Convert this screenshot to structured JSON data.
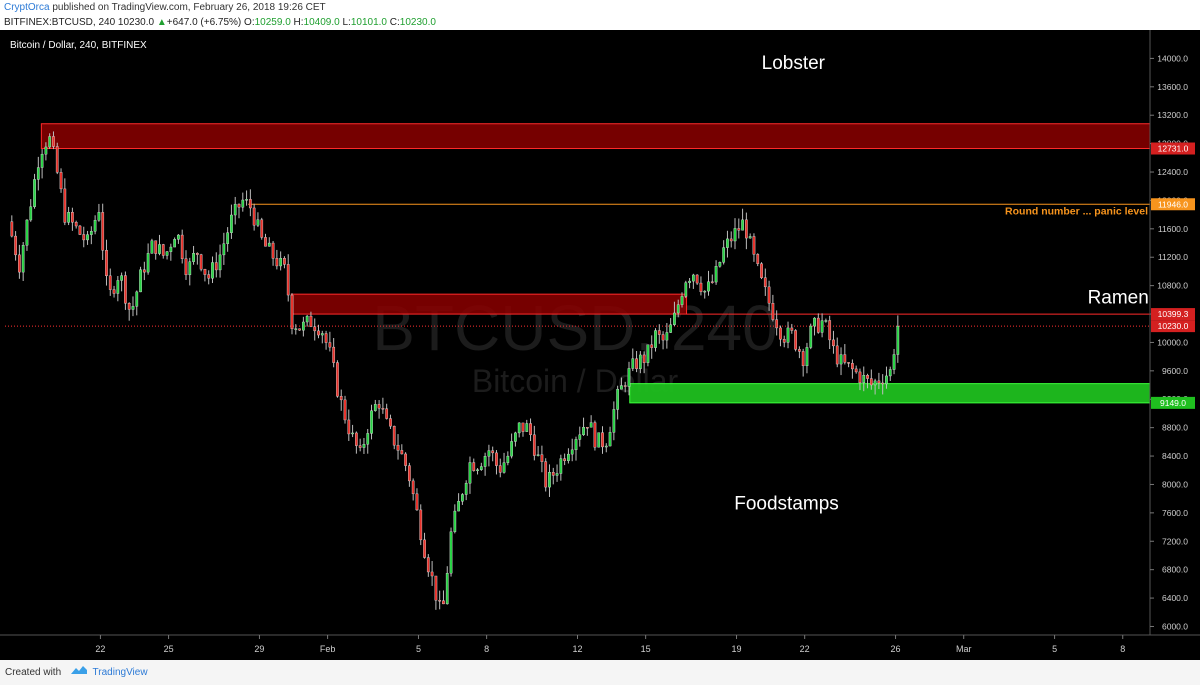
{
  "header": {
    "author": "CryptOrca",
    "published_text": "published on TradingView.com, February 26, 2018 19:26 CET"
  },
  "legend": {
    "symbol": "BITFINEX:BTCUSD, 240",
    "last": "10230.0",
    "change_arrow": "▲",
    "change": "+647.0 (+6.75%)",
    "o_label": "O:",
    "o_value": "10259.0",
    "h_label": "H:",
    "h_value": "10409.0",
    "l_label": "L:",
    "l_value": "10101.0",
    "c_label": "C:",
    "c_value": "10230.0"
  },
  "footer": {
    "created_with": "Created with",
    "brand": "TradingView"
  },
  "colors": {
    "up": "#26d443",
    "down": "#e8312a",
    "background": "#000000",
    "resistance_zone": "#8b0000",
    "support_zone": "#1fbf1f",
    "round_number": "#f7941d"
  },
  "chart_data": {
    "type": "candlestick",
    "title": "Bitcoin / Dollar, 240, BITFINEX",
    "watermark_symbol": "BTCUSD, 240",
    "watermark_name": "Bitcoin / Dollar",
    "ylim": [
      5880,
      14400
    ],
    "y_ticks": [
      "14000.0",
      "13600.0",
      "13200.0",
      "12800.0",
      "12400.0",
      "12000.0",
      "11600.0",
      "11200.0",
      "10800.0",
      "10400.0",
      "10000.0",
      "9600.0",
      "9200.0",
      "8800.0",
      "8400.0",
      "8000.0",
      "7600.0",
      "7200.0",
      "6800.0",
      "6400.0",
      "6000.0"
    ],
    "x_ticks": [
      {
        "label": "22",
        "day": 22
      },
      {
        "label": "25",
        "day": 25
      },
      {
        "label": "29",
        "day": 29
      },
      {
        "label": "Feb",
        "day": 32
      },
      {
        "label": "5",
        "day": 36
      },
      {
        "label": "8",
        "day": 39
      },
      {
        "label": "12",
        "day": 43
      },
      {
        "label": "15",
        "day": 46
      },
      {
        "label": "19",
        "day": 50
      },
      {
        "label": "22",
        "day": 53
      },
      {
        "label": "26",
        "day": 57
      },
      {
        "label": "Mar",
        "day": 60
      },
      {
        "label": "5",
        "day": 64
      },
      {
        "label": "8",
        "day": 67
      }
    ],
    "x_range": [
      17.8,
      68.2
    ],
    "anchors": [
      [
        18.1,
        11700
      ],
      [
        18.6,
        11100
      ],
      [
        19.0,
        11800
      ],
      [
        19.5,
        12700
      ],
      [
        19.9,
        12900
      ],
      [
        20.2,
        12500
      ],
      [
        20.6,
        11800
      ],
      [
        21.1,
        11600
      ],
      [
        21.6,
        11400
      ],
      [
        22.1,
        11900
      ],
      [
        22.5,
        10600
      ],
      [
        23.0,
        11000
      ],
      [
        23.5,
        10400
      ],
      [
        24.0,
        11000
      ],
      [
        24.5,
        11400
      ],
      [
        25.0,
        11200
      ],
      [
        25.5,
        11600
      ],
      [
        26.0,
        11000
      ],
      [
        26.4,
        11300
      ],
      [
        26.9,
        10900
      ],
      [
        27.4,
        11200
      ],
      [
        27.9,
        11700
      ],
      [
        28.4,
        12000
      ],
      [
        28.8,
        11900
      ],
      [
        29.3,
        11400
      ],
      [
        29.8,
        11200
      ],
      [
        30.3,
        11000
      ],
      [
        30.6,
        10300
      ],
      [
        31.0,
        10200
      ],
      [
        31.4,
        10300
      ],
      [
        31.9,
        10200
      ],
      [
        32.3,
        9800
      ],
      [
        32.7,
        9200
      ],
      [
        33.2,
        8700
      ],
      [
        33.6,
        8400
      ],
      [
        34.0,
        8900
      ],
      [
        34.4,
        9200
      ],
      [
        34.8,
        8800
      ],
      [
        35.3,
        8500
      ],
      [
        35.7,
        8200
      ],
      [
        36.1,
        7600
      ],
      [
        36.5,
        7000
      ],
      [
        36.9,
        6500
      ],
      [
        37.2,
        6100
      ],
      [
        37.6,
        7300
      ],
      [
        38.0,
        7800
      ],
      [
        38.4,
        8300
      ],
      [
        38.8,
        8300
      ],
      [
        39.3,
        8500
      ],
      [
        39.7,
        8200
      ],
      [
        40.1,
        8400
      ],
      [
        40.6,
        8800
      ],
      [
        41.0,
        8800
      ],
      [
        41.4,
        8400
      ],
      [
        41.8,
        8000
      ],
      [
        42.2,
        8200
      ],
      [
        42.7,
        8500
      ],
      [
        43.1,
        8700
      ],
      [
        43.6,
        8900
      ],
      [
        44.0,
        8600
      ],
      [
        44.4,
        8600
      ],
      [
        44.9,
        9200
      ],
      [
        45.3,
        9500
      ],
      [
        45.7,
        9700
      ],
      [
        46.2,
        9800
      ],
      [
        46.6,
        10100
      ],
      [
        47.0,
        10000
      ],
      [
        47.4,
        10300
      ],
      [
        47.9,
        10900
      ],
      [
        48.3,
        11000
      ],
      [
        48.8,
        10700
      ],
      [
        49.2,
        10900
      ],
      [
        49.6,
        11300
      ],
      [
        50.0,
        11500
      ],
      [
        50.5,
        11700
      ],
      [
        50.9,
        11200
      ],
      [
        51.3,
        10800
      ],
      [
        51.8,
        10400
      ],
      [
        52.2,
        10100
      ],
      [
        52.6,
        10100
      ],
      [
        53.1,
        9800
      ],
      [
        53.5,
        10200
      ],
      [
        54.0,
        10300
      ],
      [
        54.4,
        9900
      ],
      [
        54.8,
        9700
      ],
      [
        55.3,
        9600
      ],
      [
        55.7,
        9500
      ],
      [
        56.1,
        9400
      ],
      [
        56.5,
        9500
      ],
      [
        57.0,
        9600
      ],
      [
        57.2,
        10230
      ]
    ],
    "lines": [
      {
        "name": "upper-resistance-zone",
        "type": "zone",
        "from": 12731.0,
        "to": 13080,
        "x_start": 19.4
      },
      {
        "name": "round-number-line",
        "type": "line",
        "value": 11946.0,
        "x_start": 28.5
      },
      {
        "name": "mid-resistance-zone",
        "type": "zone",
        "from": 10399.3,
        "to": 10680,
        "x_start": 30.4,
        "x_end": 47.8
      },
      {
        "name": "mid-resistance-line",
        "type": "line",
        "value": 10399.3,
        "x_start": 47.8
      },
      {
        "name": "last-price-line",
        "type": "dotted",
        "value": 10230.0
      },
      {
        "name": "support-zone",
        "type": "zone",
        "from": 9149.0,
        "to": 9420,
        "x_start": 45.3
      }
    ],
    "price_labels": [
      {
        "name": "price-label-12731",
        "text": "12731.0",
        "value": 12731.0,
        "bg": "#d42020"
      },
      {
        "name": "price-label-11946",
        "text": "11946.0",
        "value": 11946.0,
        "bg": "#f7941d"
      },
      {
        "name": "price-label-10399",
        "text": "10399.3",
        "value": 10399.3,
        "bg": "#d42020"
      },
      {
        "name": "price-label-10230",
        "text": "10230.0",
        "value": 10230.0,
        "bg": "#d42020"
      },
      {
        "name": "price-label-9149",
        "text": "9149.0",
        "value": 9149.0,
        "bg": "#1fbf1f"
      }
    ],
    "annotations": [
      {
        "name": "annotation-lobster",
        "text": "Lobster",
        "day": 52.5,
        "value": 13850
      },
      {
        "name": "annotation-round-number",
        "text": "Round number ... panic level",
        "day": 68.2,
        "value": 11800
      },
      {
        "name": "annotation-ramen",
        "text": "Ramen",
        "day": 66.8,
        "value": 10550
      },
      {
        "name": "annotation-foodstamps",
        "text": "Foodstamps",
        "day": 52.2,
        "value": 7650
      }
    ]
  }
}
